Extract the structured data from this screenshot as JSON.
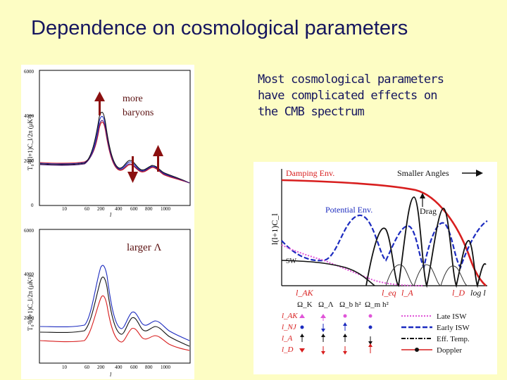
{
  "slide": {
    "title": "Dependence on cosmological parameters",
    "note_lines": [
      "Most cosmological parameters",
      "have complicated  effects on",
      "the CMB spectrum"
    ]
  },
  "left_figure": {
    "y_axis_label": "T₀²l(l+1)C_l/2π   (μK²)",
    "x_axis_label": "l",
    "y_ticks": [
      "6000",
      "4000",
      "2000",
      "0"
    ],
    "x_ticks": [
      "10",
      "60",
      "200",
      "400",
      "600",
      "800",
      "1000"
    ],
    "top_panel": {
      "annotation_line1": "more",
      "annotation_line2": "baryons"
    },
    "bottom_panel": {
      "annotation": "larger Λ"
    }
  },
  "right_figure": {
    "y_axis_label": "l(l+1)C_l",
    "labels": {
      "damping": "Damping Env.",
      "smaller_angles": "Smaller Angles",
      "potential": "Potential Env.",
      "drag": "Drag",
      "sw": "SW",
      "l_ak": "l_AK",
      "l_eq": "l_eq",
      "l_a": "l_A",
      "l_d": "l_D",
      "log_l": "log l"
    },
    "param_headers": [
      "Ω_K",
      "Ω_Λ",
      "Ω_b h²",
      "Ω_m h²"
    ],
    "row_labels": [
      "l_AK",
      "l_NJ",
      "l_A",
      "l_D"
    ],
    "legend": [
      "Late ISW",
      "Early ISW",
      "Eff. Temp.",
      "Doppler"
    ],
    "colors": {
      "late_isw": "#e055d8",
      "early_isw": "#1c2bbf",
      "eff_temp": "#111111",
      "doppler": "#d81e1e"
    }
  },
  "colors": {
    "background": "#fdfdc4",
    "title_text": "#15155e",
    "arrow": "#8b1010"
  }
}
